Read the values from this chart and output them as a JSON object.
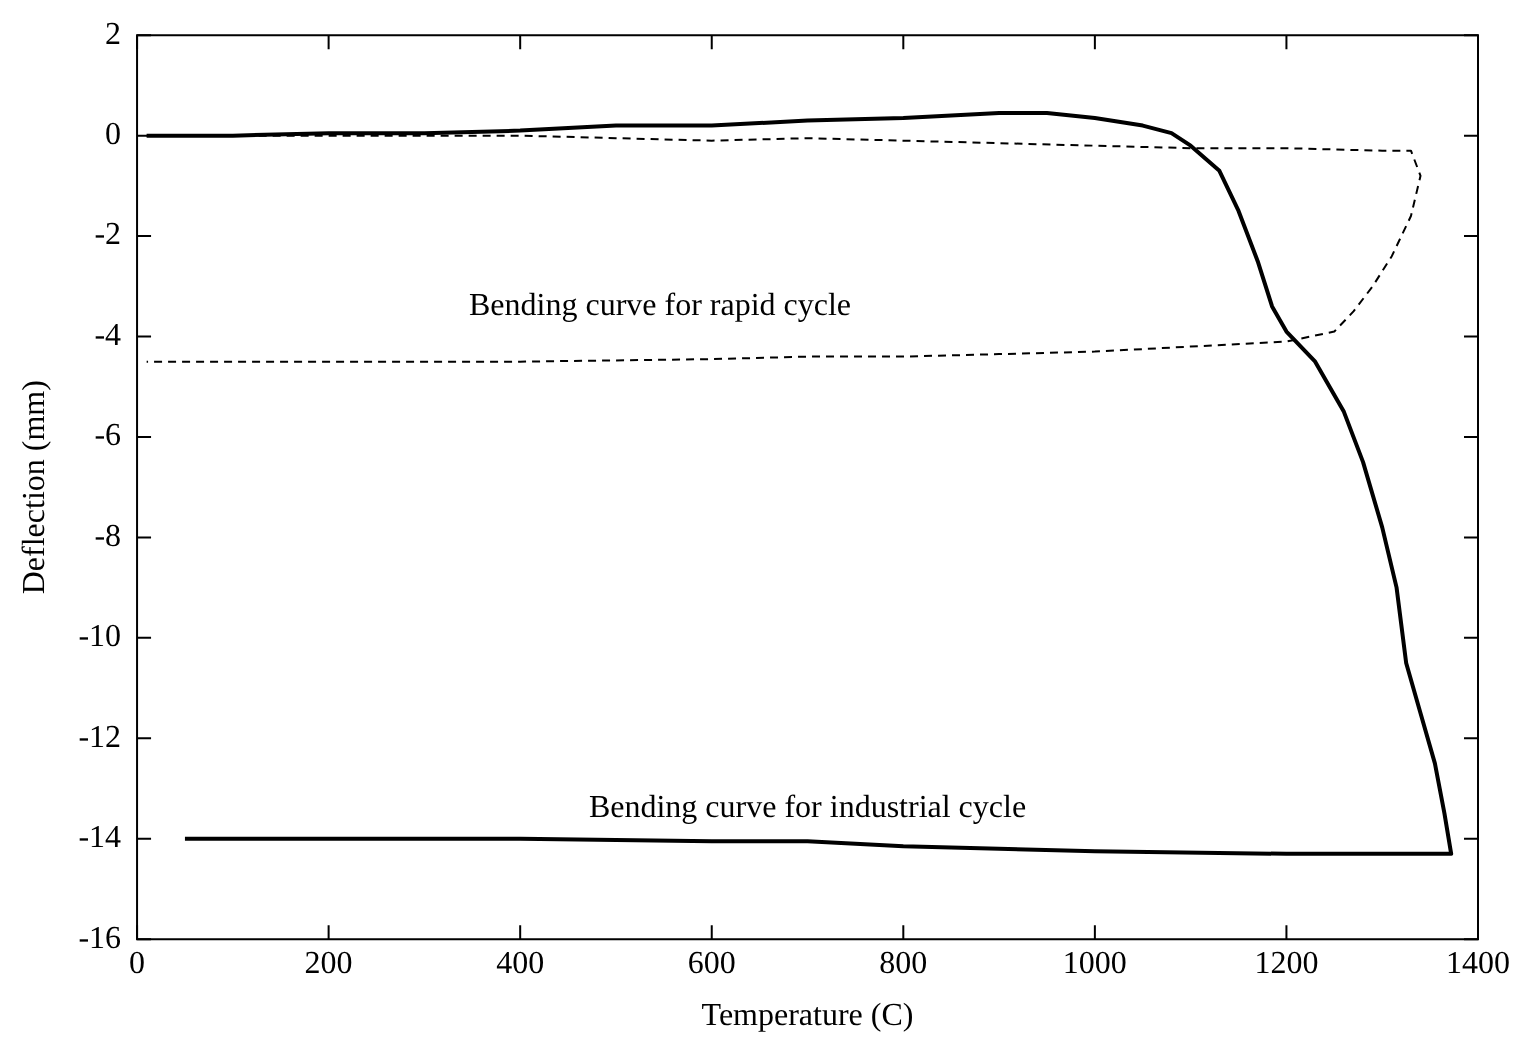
{
  "chart_data": {
    "type": "line",
    "xlabel": "Temperature (C)",
    "ylabel": "Deflection (mm)",
    "xlim": [
      0,
      1400
    ],
    "xticks": [
      0,
      200,
      400,
      600,
      800,
      1000,
      1200,
      1400
    ],
    "ylim": [
      -16,
      2
    ],
    "yticks": [
      -16,
      -14,
      -12,
      -10,
      -8,
      -6,
      -4,
      -2,
      0,
      2
    ],
    "grid": false,
    "legend": false,
    "marker": "none",
    "series": [
      {
        "color": "#000000",
        "line_style": "solid",
        "x": [
          10,
          100,
          200,
          300,
          400,
          500,
          600,
          700,
          800,
          900,
          950,
          1000,
          1050,
          1080,
          1100,
          1130,
          1150,
          1170,
          1185,
          1200,
          1230,
          1260,
          1280,
          1300,
          1315,
          1325,
          1340,
          1355,
          1365,
          1372,
          1372,
          1300,
          1200,
          1000,
          800,
          700,
          600,
          400,
          200,
          50
        ],
        "values": [
          0,
          0,
          0.05,
          0.05,
          0.1,
          0.2,
          0.2,
          0.3,
          0.35,
          0.45,
          0.45,
          0.35,
          0.2,
          0.05,
          -0.2,
          -0.7,
          -1.5,
          -2.5,
          -3.4,
          -3.9,
          -4.5,
          -5.5,
          -6.5,
          -7.8,
          -9,
          -10.5,
          -11.5,
          -12.5,
          -13.5,
          -14.3,
          -14.3,
          -14.3,
          -14.3,
          -14.25,
          -14.15,
          -14.05,
          -14.05,
          -14.0,
          -14.0,
          -14.0
        ]
      },
      {
        "color": "#000000",
        "line_style": "dashed",
        "x": [
          10,
          200,
          400,
          500,
          600,
          700,
          800,
          900,
          1000,
          1100,
          1200,
          1300,
          1330,
          1340,
          1330,
          1310,
          1290,
          1270,
          1250,
          1200,
          1100,
          1000,
          900,
          800,
          700,
          600,
          400,
          200,
          10
        ],
        "values": [
          0,
          0,
          0,
          -0.05,
          -0.1,
          -0.05,
          -0.1,
          -0.15,
          -0.2,
          -0.25,
          -0.25,
          -0.3,
          -0.3,
          -0.8,
          -1.6,
          -2.4,
          -3.0,
          -3.5,
          -3.9,
          -4.1,
          -4.2,
          -4.3,
          -4.35,
          -4.4,
          -4.4,
          -4.45,
          -4.5,
          -4.5,
          -4.5
        ]
      }
    ],
    "annotations": [
      "Bending curve for rapid cycle",
      "Bending curve for industrial cycle"
    ]
  }
}
